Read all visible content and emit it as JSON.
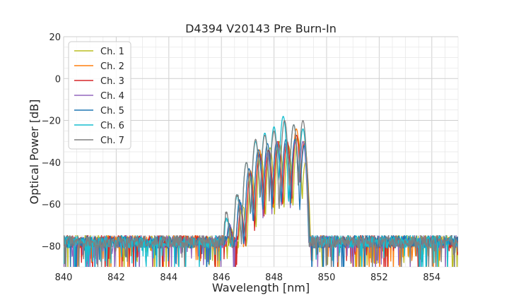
{
  "chart_data": {
    "type": "line",
    "title": "D4394 V20143 Pre Burn-In",
    "xlabel": "Wavelength [nm]",
    "ylabel": "Optical Power [dB]",
    "xlim": [
      840,
      855
    ],
    "ylim": [
      -90,
      20
    ],
    "x_ticks": [
      840,
      842,
      844,
      846,
      848,
      850,
      852,
      854
    ],
    "x_tick_labels": [
      "840",
      "842",
      "844",
      "846",
      "848",
      "850",
      "852",
      "854"
    ],
    "y_ticks": [
      -80,
      -60,
      -40,
      -20,
      0,
      20
    ],
    "y_tick_labels": [
      "−80",
      "−60",
      "−40",
      "−20",
      "0",
      "20"
    ],
    "grid": true,
    "legend_position": "top-left",
    "noise_floor_db": -78,
    "series": [
      {
        "name": "Ch. 1",
        "color": "#bcbd22",
        "peaks": [
          [
            846.4,
            -70
          ],
          [
            846.8,
            -58
          ],
          [
            847.15,
            -45
          ],
          [
            847.5,
            -36
          ],
          [
            847.85,
            -33
          ],
          [
            848.2,
            -30
          ],
          [
            848.55,
            -32
          ],
          [
            848.9,
            -28
          ],
          [
            849.2,
            -40
          ]
        ]
      },
      {
        "name": "Ch. 2",
        "color": "#ff7f0e",
        "peaks": [
          [
            846.3,
            -68
          ],
          [
            846.7,
            -58
          ],
          [
            847.1,
            -44
          ],
          [
            847.45,
            -34
          ],
          [
            847.8,
            -34
          ],
          [
            848.15,
            -31
          ],
          [
            848.5,
            -31
          ],
          [
            848.85,
            -24
          ],
          [
            849.15,
            -30
          ]
        ]
      },
      {
        "name": "Ch. 3",
        "color": "#d62728",
        "peaks": [
          [
            846.35,
            -70
          ],
          [
            846.75,
            -60
          ],
          [
            847.1,
            -45
          ],
          [
            847.45,
            -36
          ],
          [
            847.8,
            -34
          ],
          [
            848.15,
            -30
          ],
          [
            848.5,
            -30
          ],
          [
            848.85,
            -27
          ],
          [
            849.15,
            -31
          ]
        ]
      },
      {
        "name": "Ch. 4",
        "color": "#9467bd",
        "peaks": [
          [
            846.3,
            -68
          ],
          [
            846.7,
            -58
          ],
          [
            847.05,
            -43
          ],
          [
            847.4,
            -34
          ],
          [
            847.75,
            -35
          ],
          [
            848.1,
            -30
          ],
          [
            848.45,
            -31
          ],
          [
            848.8,
            -30
          ],
          [
            849.1,
            -30
          ]
        ]
      },
      {
        "name": "Ch. 5",
        "color": "#1f77b4",
        "peaks": [
          [
            846.3,
            -68
          ],
          [
            846.7,
            -57
          ],
          [
            847.05,
            -43
          ],
          [
            847.4,
            -34
          ],
          [
            847.75,
            -31
          ],
          [
            848.1,
            -31
          ],
          [
            848.45,
            -29
          ],
          [
            848.8,
            -29
          ],
          [
            849.15,
            -32
          ]
        ]
      },
      {
        "name": "Ch. 6",
        "color": "#17becf",
        "peaks": [
          [
            846.2,
            -65
          ],
          [
            846.6,
            -54
          ],
          [
            846.95,
            -40
          ],
          [
            847.3,
            -30
          ],
          [
            847.65,
            -26
          ],
          [
            848.0,
            -23
          ],
          [
            848.35,
            -18
          ],
          [
            848.75,
            -22
          ],
          [
            849.1,
            -24
          ]
        ]
      },
      {
        "name": "Ch. 7",
        "color": "#7f7f7f",
        "peaks": [
          [
            846.2,
            -62
          ],
          [
            846.6,
            -54
          ],
          [
            846.95,
            -40
          ],
          [
            847.3,
            -29
          ],
          [
            847.65,
            -27
          ],
          [
            848.0,
            -25
          ],
          [
            848.4,
            -20
          ],
          [
            848.75,
            -22
          ],
          [
            849.1,
            -20
          ]
        ]
      }
    ]
  }
}
